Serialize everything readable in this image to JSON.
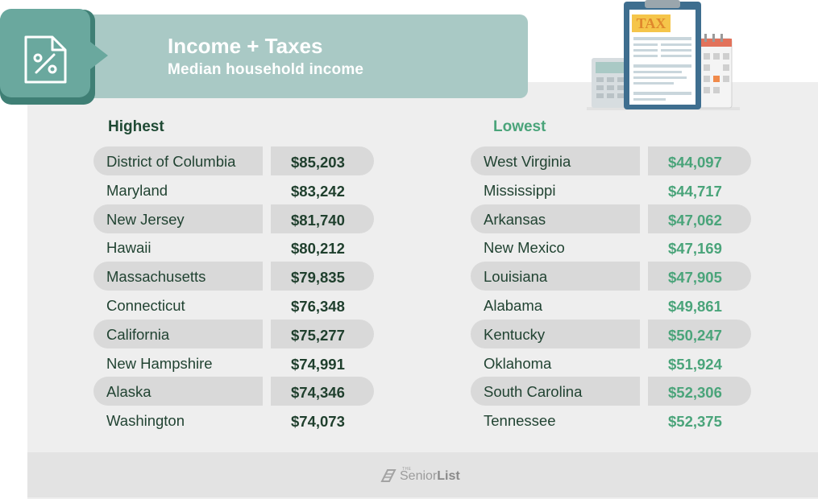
{
  "header": {
    "title": "Income + Taxes",
    "subtitle": "Median household income",
    "icon": "percent-document-icon"
  },
  "illustration": {
    "tax_label": "TAX",
    "icons": [
      "calculator-icon",
      "clipboard-icon",
      "calendar-icon"
    ]
  },
  "highest": {
    "heading": "Highest",
    "rows": [
      {
        "state": "District of Columbia",
        "income": "$85,203"
      },
      {
        "state": "Maryland",
        "income": "$83,242"
      },
      {
        "state": "New Jersey",
        "income": "$81,740"
      },
      {
        "state": "Hawaii",
        "income": "$80,212"
      },
      {
        "state": "Massachusetts",
        "income": "$79,835"
      },
      {
        "state": "Connecticut",
        "income": "$76,348"
      },
      {
        "state": "California",
        "income": "$75,277"
      },
      {
        "state": "New Hampshire",
        "income": "$74,991"
      },
      {
        "state": "Alaska",
        "income": "$74,346"
      },
      {
        "state": "Washington",
        "income": "$74,073"
      }
    ]
  },
  "lowest": {
    "heading": "Lowest",
    "rows": [
      {
        "state": "West Virginia",
        "income": "$44,097"
      },
      {
        "state": "Mississippi",
        "income": "$44,717"
      },
      {
        "state": "Arkansas",
        "income": "$47,062"
      },
      {
        "state": "New Mexico",
        "income": "$47,169"
      },
      {
        "state": "Louisiana",
        "income": "$47,905"
      },
      {
        "state": "Alabama",
        "income": "$49,861"
      },
      {
        "state": "Kentucky",
        "income": "$50,247"
      },
      {
        "state": "Oklahoma",
        "income": "$51,924"
      },
      {
        "state": "South Carolina",
        "income": "$52,306"
      },
      {
        "state": "Tennessee",
        "income": "$52,375"
      }
    ]
  },
  "logo": {
    "small": "THE",
    "word1": "Senior",
    "word2": "List"
  },
  "colors": {
    "teal_dark": "#3f7f75",
    "teal": "#6aa89e",
    "banner": "#a9c9c5",
    "green_accent": "#4aa47a",
    "dark_green": "#1f4a34"
  }
}
